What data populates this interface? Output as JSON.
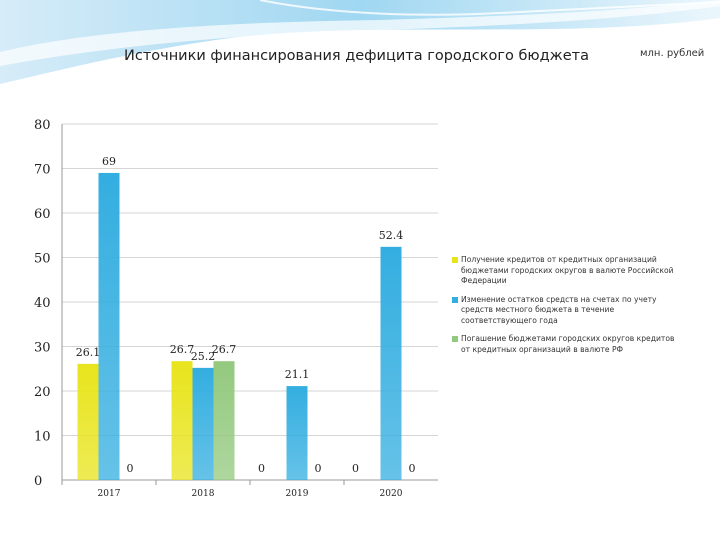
{
  "header": {
    "title": "Источники финансирования дефицита городского бюджета",
    "unit": "млн. рублей"
  },
  "chart_data": {
    "type": "bar",
    "categories": [
      "2017",
      "2018",
      "2019",
      "2020"
    ],
    "ylim": [
      0,
      80
    ],
    "yticks": [
      "0",
      "10",
      "20",
      "30",
      "40",
      "50",
      "60",
      "70",
      "80"
    ],
    "grid": true,
    "legend_position": "right",
    "series": [
      {
        "name": "Получение кредитов от кредитных организаций бюджетами городских округов в валюте Российской Федерации",
        "color": "#e8e41c",
        "values": [
          26.1,
          26.7,
          null,
          null
        ],
        "labels": [
          "26.1",
          "26.7",
          "",
          ""
        ]
      },
      {
        "name": "Изменение остатков средств на счетах по учету средств местного бюджета в течение соответствующего года",
        "color": "#33aee0",
        "values": [
          69,
          25.2,
          21.1,
          52.4
        ],
        "labels": [
          "69",
          "25.2",
          "21.1",
          "52.4"
        ]
      },
      {
        "name": "Погашение бюджетами городских округов кредитов от кредитных организаций в валюте РФ",
        "color": "#93c97e",
        "values": [
          0,
          26.7,
          0,
          0
        ],
        "labels": [
          "0",
          "26.7",
          "0",
          "0"
        ]
      }
    ],
    "extra_labels": [
      {
        "category": "2019",
        "text": "0"
      },
      {
        "category": "2020",
        "text": "0"
      }
    ]
  }
}
